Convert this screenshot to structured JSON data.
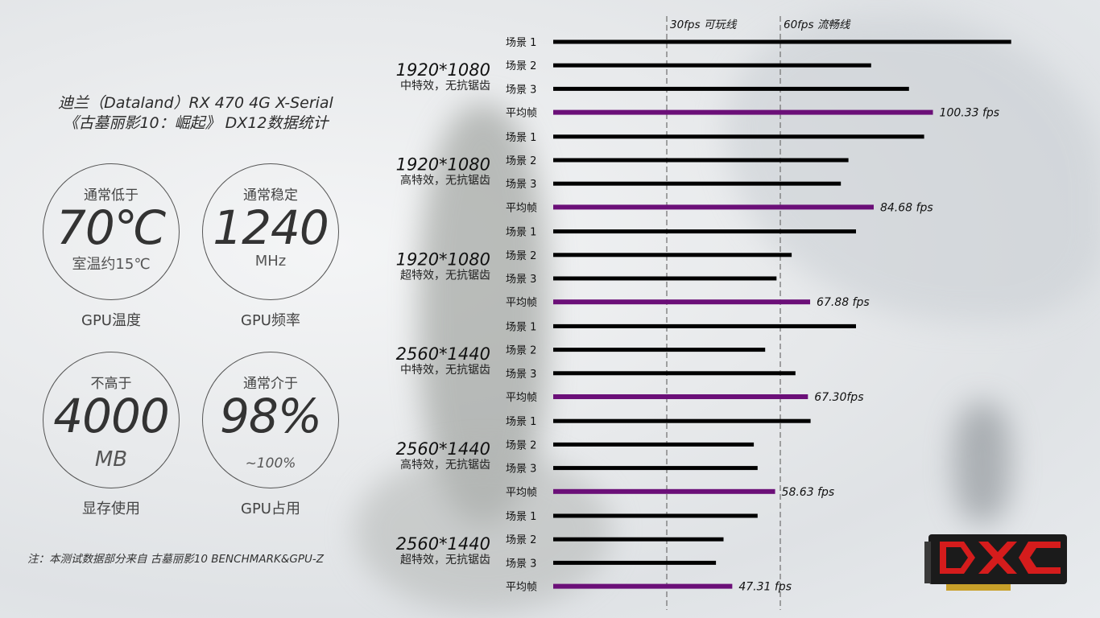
{
  "header": {
    "line1": "迪兰（Dataland）RX 470 4G X-Serial",
    "line2": "《古墓丽影10：崛起》 DX12数据统计"
  },
  "stats": [
    {
      "top": "通常低于",
      "value": "70℃",
      "bottom": "室温约15℃",
      "label": "GPU温度"
    },
    {
      "top": "通常稳定",
      "value": "1240",
      "bottom": "MHz",
      "label": "GPU频率"
    },
    {
      "top": "不高于",
      "value": "4000",
      "bottom": "MB",
      "label": "显存使用"
    },
    {
      "top": "通常介于",
      "value": "98%",
      "bottom": "~100%",
      "label": "GPU占用"
    }
  ],
  "note": "注：本测试数据部分来自 古墓丽影10 BENCHMARK&GPU-Z",
  "colors": {
    "bar": "#000000",
    "avg_bar": "#6b0f78",
    "ref_line": "#777777"
  },
  "chart_data": {
    "type": "bar",
    "orientation": "horizontal",
    "xlim": [
      0,
      124
    ],
    "reference_lines": [
      {
        "value": 30,
        "label": "30fps 可玩线"
      },
      {
        "value": 60,
        "label": "60fps 流畅线"
      }
    ],
    "groups": [
      {
        "resolution": "1920*1080",
        "setting": "中特效，无抗锯齿",
        "bars": [
          {
            "label": "场景 1",
            "value": 121
          },
          {
            "label": "场景 2",
            "value": 84
          },
          {
            "label": "场景 3",
            "value": 94
          },
          {
            "label": "平均帧",
            "value": 100.33,
            "avg": true,
            "text": "100.33 fps"
          }
        ]
      },
      {
        "resolution": "1920*1080",
        "setting": "高特效，无抗锯齿",
        "bars": [
          {
            "label": "场景 1",
            "value": 98
          },
          {
            "label": "场景 2",
            "value": 78
          },
          {
            "label": "场景 3",
            "value": 76
          },
          {
            "label": "平均帧",
            "value": 84.68,
            "avg": true,
            "text": "84.68 fps"
          }
        ]
      },
      {
        "resolution": "1920*1080",
        "setting": "超特效，无抗锯齿",
        "bars": [
          {
            "label": "场景 1",
            "value": 80
          },
          {
            "label": "场景 2",
            "value": 63
          },
          {
            "label": "场景 3",
            "value": 59
          },
          {
            "label": "平均帧",
            "value": 67.88,
            "avg": true,
            "text": "67.88 fps"
          }
        ]
      },
      {
        "resolution": "2560*1440",
        "setting": "中特效，无抗锯齿",
        "bars": [
          {
            "label": "场景 1",
            "value": 80
          },
          {
            "label": "场景 2",
            "value": 56
          },
          {
            "label": "场景 3",
            "value": 64
          },
          {
            "label": "平均帧",
            "value": 67.3,
            "avg": true,
            "text": "67.30fps"
          }
        ]
      },
      {
        "resolution": "2560*1440",
        "setting": "高特效，无抗锯齿",
        "bars": [
          {
            "label": "场景 1",
            "value": 68
          },
          {
            "label": "场景 2",
            "value": 53
          },
          {
            "label": "场景 3",
            "value": 54
          },
          {
            "label": "平均帧",
            "value": 58.63,
            "avg": true,
            "text": "58.63 fps"
          }
        ]
      },
      {
        "resolution": "2560*1440",
        "setting": "超特效，无抗锯齿",
        "bars": [
          {
            "label": "场景 1",
            "value": 54
          },
          {
            "label": "场景 2",
            "value": 45
          },
          {
            "label": "场景 3",
            "value": 43
          },
          {
            "label": "平均帧",
            "value": 47.31,
            "avg": true,
            "text": "47.31 fps"
          }
        ]
      }
    ]
  }
}
